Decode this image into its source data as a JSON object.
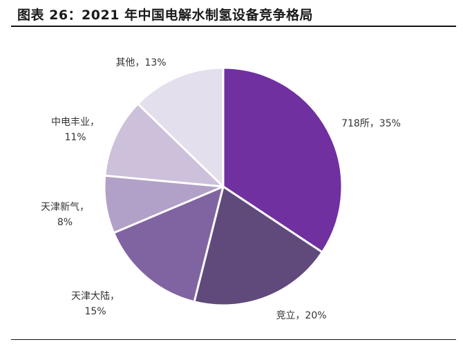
{
  "figure": {
    "title": "图表 26：2021 年中国电解水制氢设备竞争格局"
  },
  "chart_data": {
    "type": "pie",
    "title": "",
    "start_angle_deg": 0,
    "direction": "clockwise",
    "slices": [
      {
        "name": "718所",
        "value": 35,
        "color": "#7030a0",
        "label": [
          "718所，35%"
        ]
      },
      {
        "name": "竞立",
        "value": 20,
        "color": "#604a7b",
        "label": [
          "竞立，20%"
        ]
      },
      {
        "name": "天津大陆",
        "value": 15,
        "color": "#8064a2",
        "label": [
          "天津大陆，",
          "15%"
        ]
      },
      {
        "name": "天津新气",
        "value": 8,
        "color": "#b1a0c7",
        "label": [
          "天津新气，",
          "8%"
        ]
      },
      {
        "name": "中电丰业",
        "value": 11,
        "color": "#ccc0da",
        "label": [
          "中电丰业，",
          "11%"
        ]
      },
      {
        "name": "其他",
        "value": 13,
        "color": "#e4dfec",
        "label": [
          "其他，13%"
        ]
      }
    ]
  }
}
